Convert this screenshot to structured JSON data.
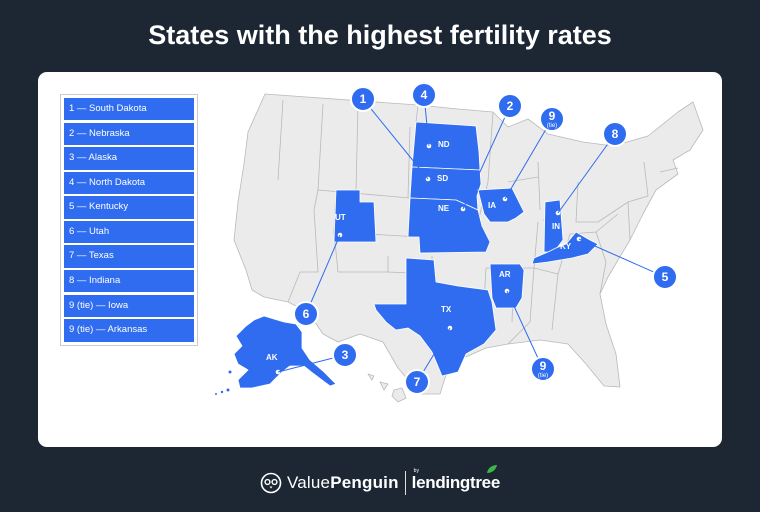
{
  "title": "States with the highest fertility rates",
  "legend": [
    "1 — South Dakota",
    "2 — Nebraska",
    "3 — Alaska",
    "4 — North Dakota",
    "5 — Kentucky",
    "6 — Utah",
    "7 — Texas",
    "8 — Indiana",
    "9 (tie) — Iowa",
    "9 (tie) — Arkansas"
  ],
  "states": {
    "nd": "ND",
    "sd": "SD",
    "ne": "NE",
    "ia": "IA",
    "ut": "UT",
    "in": "IN",
    "ky": "KY",
    "ar": "AR",
    "tx": "TX",
    "ak": "AK"
  },
  "markers": {
    "sd": {
      "num": "1"
    },
    "ne": {
      "num": "2"
    },
    "ak": {
      "num": "3"
    },
    "nd": {
      "num": "4"
    },
    "ky": {
      "num": "5"
    },
    "ut": {
      "num": "6"
    },
    "tx": {
      "num": "7"
    },
    "in": {
      "num": "8"
    },
    "ia": {
      "num": "9",
      "sub": "(tie)"
    },
    "ar": {
      "num": "9",
      "sub": "(tie)"
    }
  },
  "colors": {
    "background": "#1c2733",
    "highlight": "#2f6cf0",
    "state_fill": "#ebebeb",
    "state_stroke": "#b9b9b9"
  },
  "footer": {
    "brand_prefix": "Value",
    "brand_suffix": "Penguin",
    "by": "by",
    "partner": "lendingtree"
  }
}
